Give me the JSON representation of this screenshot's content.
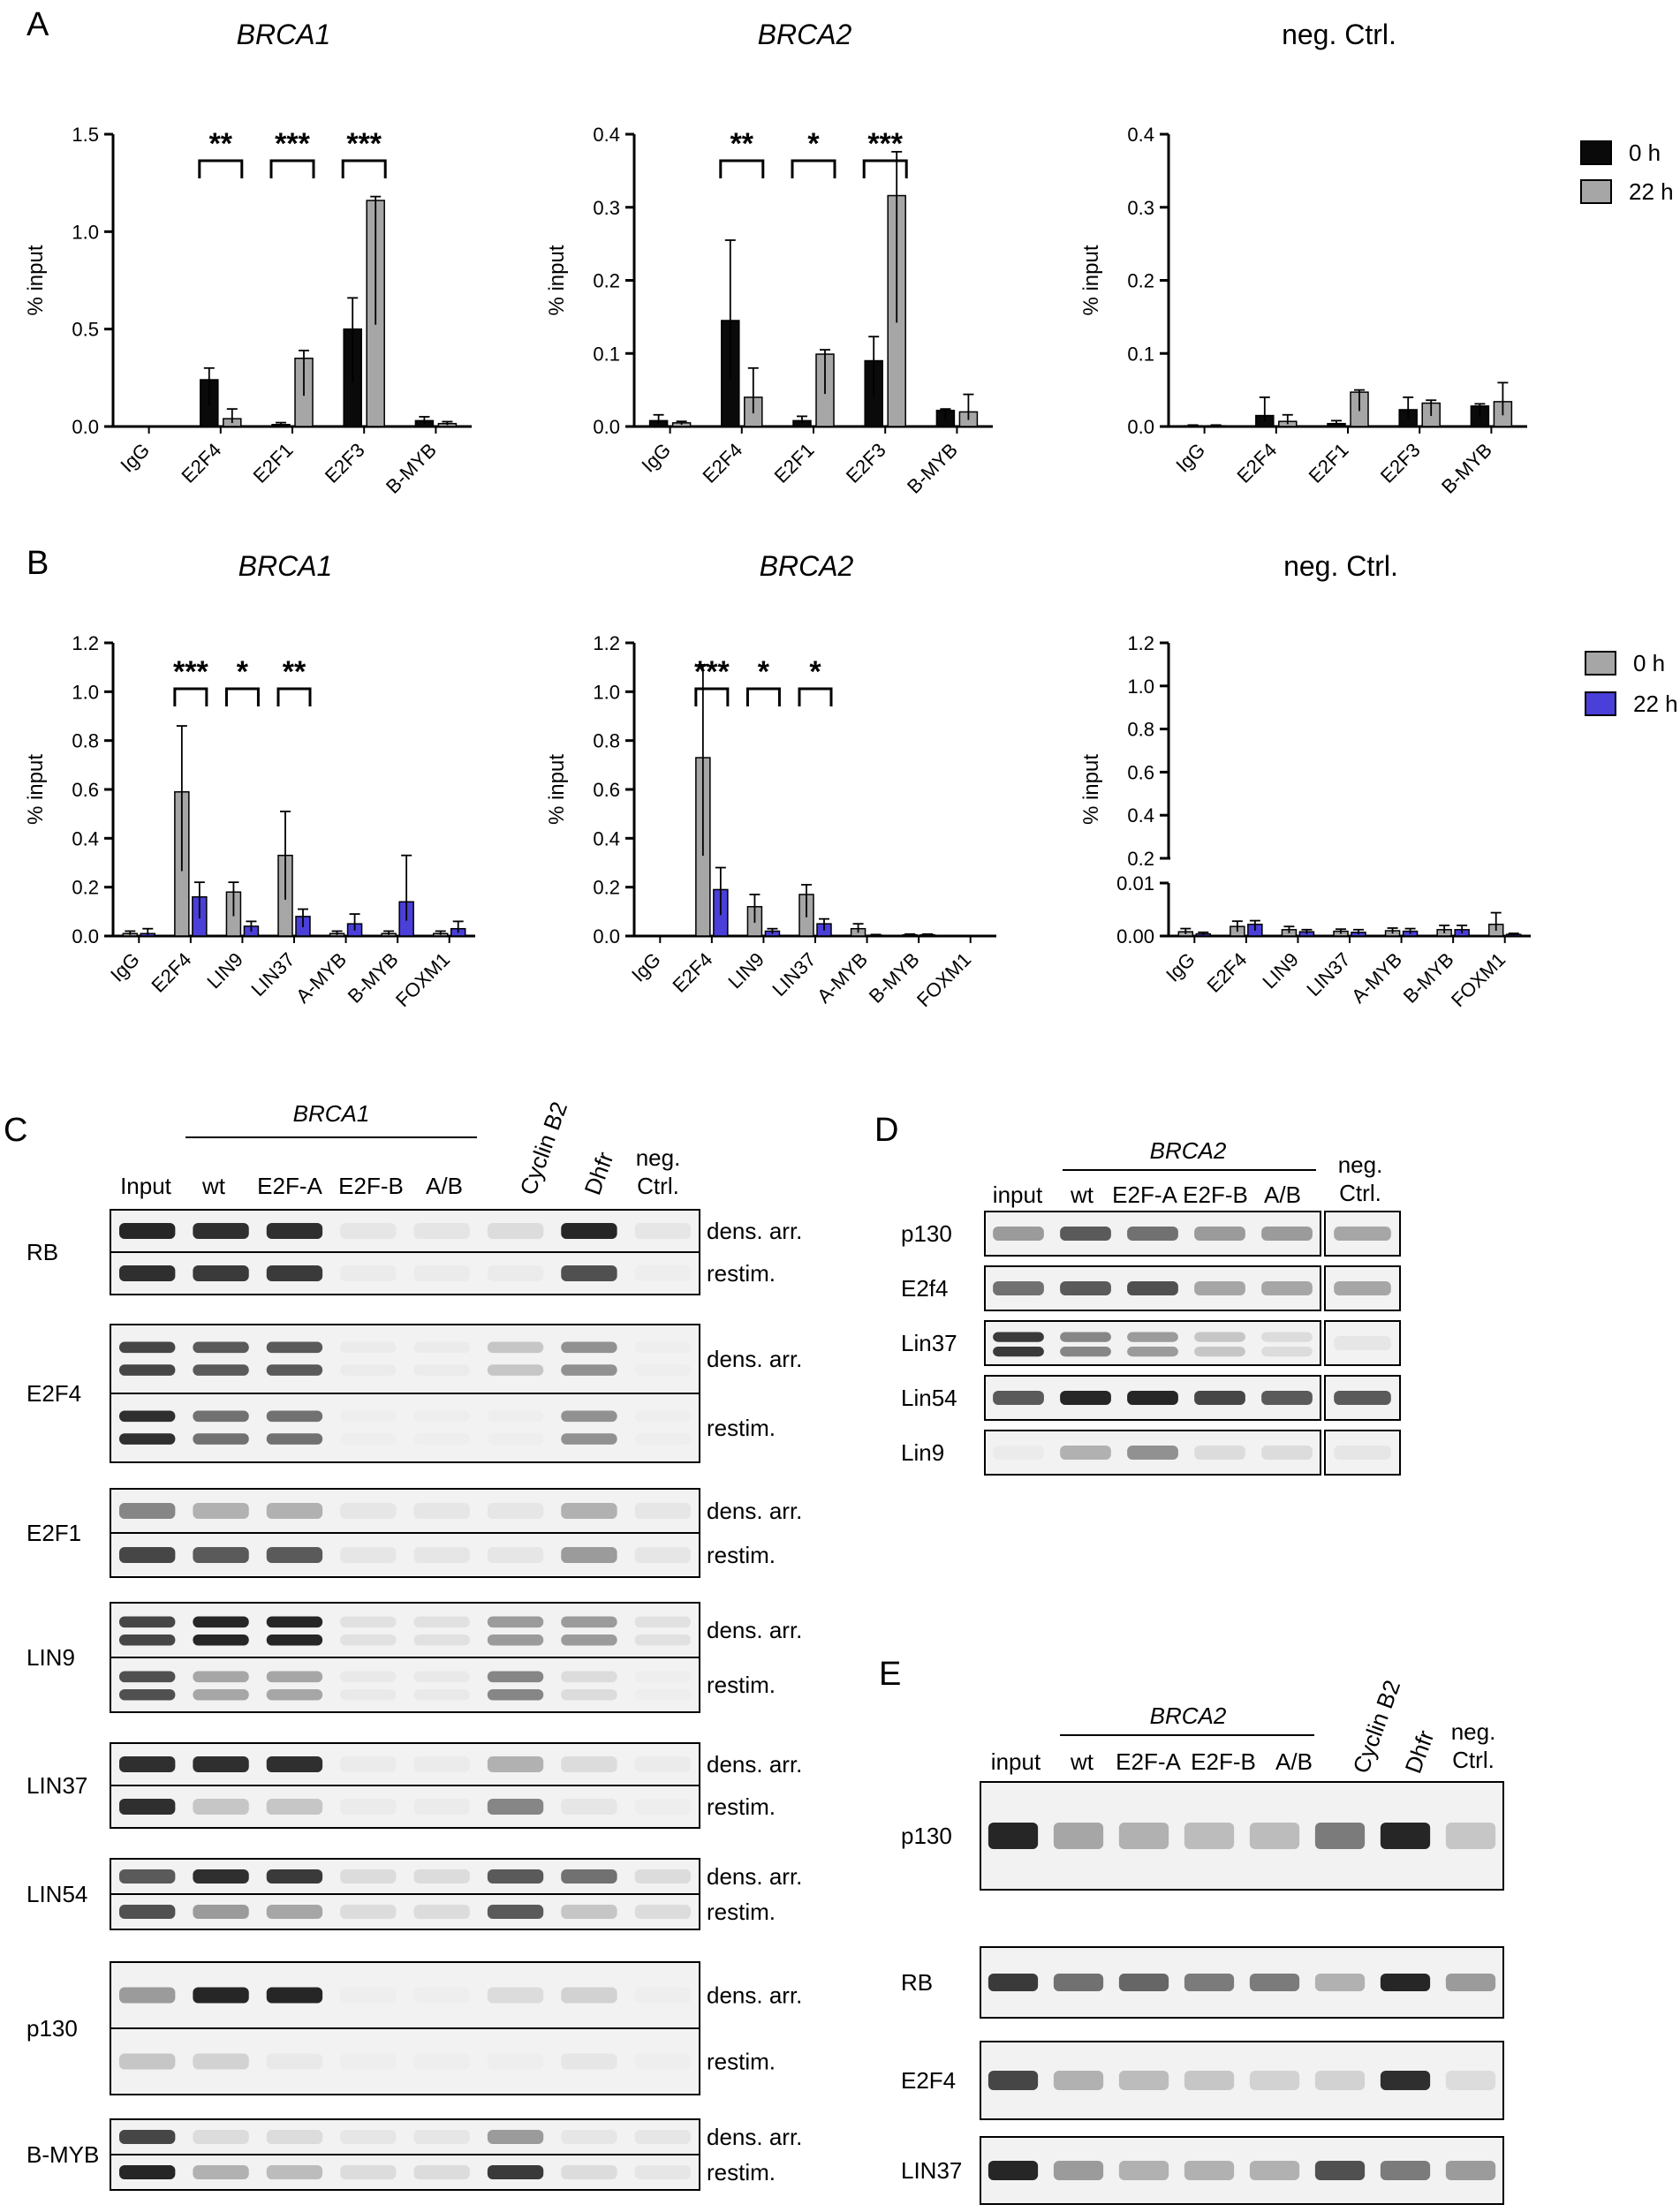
{
  "panels": {
    "A": "A",
    "B": "B",
    "C": "C",
    "D": "D",
    "E": "E"
  },
  "colors": {
    "black": "#0a0a0a",
    "gray": "#a6a6a6",
    "blue": "#4a3fd8",
    "error": "#000000",
    "blot_bg": "#f2f2f2",
    "band": "#1a1a1a"
  },
  "legendA": [
    {
      "label": "0 h",
      "color": "#0a0a0a"
    },
    {
      "label": "22 h",
      "color": "#a6a6a6"
    }
  ],
  "legendB": [
    {
      "label": "0 h",
      "color": "#a6a6a6"
    },
    {
      "label": "22 h",
      "color": "#4a3fd8"
    }
  ],
  "chart_data": [
    {
      "type": "bar",
      "title": "BRCA1",
      "ylabel": "% input",
      "ylim": [
        0,
        1.5
      ],
      "yticks": [
        "0.0",
        "0.5",
        "1.0",
        "1.5"
      ],
      "categories": [
        "IgG",
        "E2F4",
        "E2F1",
        "E2F3",
        "B-MYB"
      ],
      "series": [
        {
          "name": "0 h",
          "values": [
            0,
            0.24,
            0.01,
            0.5,
            0.03
          ],
          "errors": [
            0,
            0.06,
            0.01,
            0.16,
            0.02
          ]
        },
        {
          "name": "22 h",
          "values": [
            0,
            0.04,
            0.35,
            1.16,
            0.015
          ],
          "errors": [
            0,
            0.05,
            0.04,
            0.02,
            0.01
          ]
        }
      ],
      "significance": [
        {
          "category": "E2F4",
          "label": "**"
        },
        {
          "category": "E2F1",
          "label": "***"
        },
        {
          "category": "E2F3",
          "label": "***"
        }
      ]
    },
    {
      "type": "bar",
      "title": "BRCA2",
      "ylabel": "% input",
      "ylim": [
        0,
        0.4
      ],
      "yticks": [
        "0.0",
        "0.1",
        "0.2",
        "0.3",
        "0.4"
      ],
      "categories": [
        "IgG",
        "E2F4",
        "E2F1",
        "E2F3",
        "B-MYB"
      ],
      "series": [
        {
          "name": "0 h",
          "values": [
            0.008,
            0.145,
            0.008,
            0.09,
            0.022
          ],
          "errors": [
            0.008,
            0.11,
            0.006,
            0.033,
            0.002
          ]
        },
        {
          "name": "22 h",
          "values": [
            0.005,
            0.04,
            0.099,
            0.316,
            0.02
          ],
          "errors": [
            0.002,
            0.04,
            0.006,
            0.06,
            0.024
          ]
        }
      ],
      "significance": [
        {
          "category": "E2F4",
          "label": "**"
        },
        {
          "category": "E2F1",
          "label": "*"
        },
        {
          "category": "E2F3",
          "label": "***"
        }
      ]
    },
    {
      "type": "bar",
      "title": "neg. Ctrl.",
      "ylabel": "% input",
      "ylim": [
        0,
        0.4
      ],
      "yticks": [
        "0.0",
        "0.1",
        "0.2",
        "0.3",
        "0.4"
      ],
      "categories": [
        "IgG",
        "E2F4",
        "E2F1",
        "E2F3",
        "B-MYB"
      ],
      "series": [
        {
          "name": "0 h",
          "values": [
            0.001,
            0.015,
            0.004,
            0.023,
            0.028
          ],
          "errors": [
            0.001,
            0.025,
            0.004,
            0.017,
            0.003
          ]
        },
        {
          "name": "22 h",
          "values": [
            0.001,
            0.007,
            0.047,
            0.032,
            0.034
          ],
          "errors": [
            0.001,
            0.009,
            0.003,
            0.004,
            0.026
          ]
        }
      ],
      "significance": []
    },
    {
      "type": "bar",
      "title": "BRCA1",
      "ylabel": "% input",
      "ylim": [
        0,
        1.2
      ],
      "yticks": [
        "0.0",
        "0.2",
        "0.4",
        "0.6",
        "0.8",
        "1.0",
        "1.2"
      ],
      "categories": [
        "IgG",
        "E2F4",
        "LIN9",
        "LIN37",
        "A-MYB",
        "B-MYB",
        "FOXM1"
      ],
      "series": [
        {
          "name": "0 h",
          "values": [
            0.01,
            0.59,
            0.18,
            0.33,
            0.01,
            0.01,
            0.01
          ],
          "errors": [
            0.01,
            0.27,
            0.04,
            0.18,
            0.01,
            0.01,
            0.01
          ]
        },
        {
          "name": "22 h",
          "values": [
            0.01,
            0.16,
            0.04,
            0.08,
            0.05,
            0.14,
            0.03
          ],
          "errors": [
            0.02,
            0.06,
            0.02,
            0.03,
            0.04,
            0.19,
            0.03
          ]
        }
      ],
      "significance": [
        {
          "category": "E2F4",
          "label": "***"
        },
        {
          "category": "LIN9",
          "label": "*"
        },
        {
          "category": "LIN37",
          "label": "**"
        }
      ]
    },
    {
      "type": "bar",
      "title": "BRCA2",
      "ylabel": "% input",
      "ylim": [
        0,
        1.2
      ],
      "yticks": [
        "0.0",
        "0.2",
        "0.4",
        "0.6",
        "0.8",
        "1.0",
        "1.2"
      ],
      "categories": [
        "IgG",
        "E2F4",
        "LIN9",
        "LIN37",
        "A-MYB",
        "B-MYB",
        "FOXM1"
      ],
      "series": [
        {
          "name": "0 h",
          "values": [
            0,
            0.73,
            0.12,
            0.17,
            0.03,
            0.005,
            0
          ],
          "errors": [
            0,
            0.38,
            0.05,
            0.04,
            0.02,
            0.003,
            0
          ]
        },
        {
          "name": "22 h",
          "values": [
            0,
            0.19,
            0.02,
            0.05,
            0.003,
            0.005,
            0
          ],
          "errors": [
            0,
            0.09,
            0.01,
            0.02,
            0.003,
            0.003,
            0
          ]
        }
      ],
      "significance": [
        {
          "category": "E2F4",
          "label": "***"
        },
        {
          "category": "LIN9",
          "label": "*"
        },
        {
          "category": "LIN37",
          "label": "*"
        }
      ]
    },
    {
      "type": "bar",
      "title": "neg. Ctrl.",
      "ylabel": "% input",
      "ylim": [
        0,
        1.2
      ],
      "broken_axis": true,
      "yticks_upper": [
        "0.2",
        "0.4",
        "0.6",
        "0.8",
        "1.0",
        "1.2"
      ],
      "yticks_lower": [
        "0.00",
        "0.01"
      ],
      "categories": [
        "IgG",
        "E2F4",
        "LIN9",
        "LIN37",
        "A-MYB",
        "B-MYB",
        "FOXM1"
      ],
      "series": [
        {
          "name": "0 h",
          "values": [
            0.0008,
            0.0018,
            0.0012,
            0.0009,
            0.001,
            0.0012,
            0.0022
          ],
          "errors": [
            0.0006,
            0.001,
            0.0006,
            0.0004,
            0.0005,
            0.0008,
            0.0022
          ]
        },
        {
          "name": "22 h",
          "values": [
            0.0004,
            0.0022,
            0.0008,
            0.0007,
            0.0009,
            0.0012,
            0.0003
          ],
          "errors": [
            0.0003,
            0.0007,
            0.0004,
            0.0005,
            0.0005,
            0.0008,
            0.0002
          ]
        }
      ],
      "significance": []
    }
  ],
  "blotC": {
    "header": {
      "gene": "BRCA1",
      "lanes": [
        "Input",
        "wt",
        "E2F-A",
        "E2F-B",
        "A/B",
        "Cyclin B2",
        "Dhfr",
        "neg. Ctrl."
      ]
    },
    "proteins": [
      "RB",
      "E2F4",
      "E2F1",
      "LIN9",
      "LIN37",
      "LIN54",
      "p130",
      "B-MYB"
    ],
    "conditions": [
      "dens. arr.",
      "restim."
    ]
  },
  "blotD": {
    "header": {
      "gene": "BRCA2",
      "lanes": [
        "input",
        "wt",
        "E2F-A",
        "E2F-B",
        "A/B",
        "neg. Ctrl."
      ]
    },
    "proteins": [
      "p130",
      "E2f4",
      "Lin37",
      "Lin54",
      "Lin9"
    ]
  },
  "blotE": {
    "header": {
      "gene": "BRCA2",
      "lanes": [
        "input",
        "wt",
        "E2F-A",
        "E2F-B",
        "A/B",
        "Cyclin B2",
        "Dhfr",
        "neg. Ctrl."
      ]
    },
    "proteins": [
      "p130",
      "RB",
      "E2F4",
      "LIN37"
    ]
  }
}
